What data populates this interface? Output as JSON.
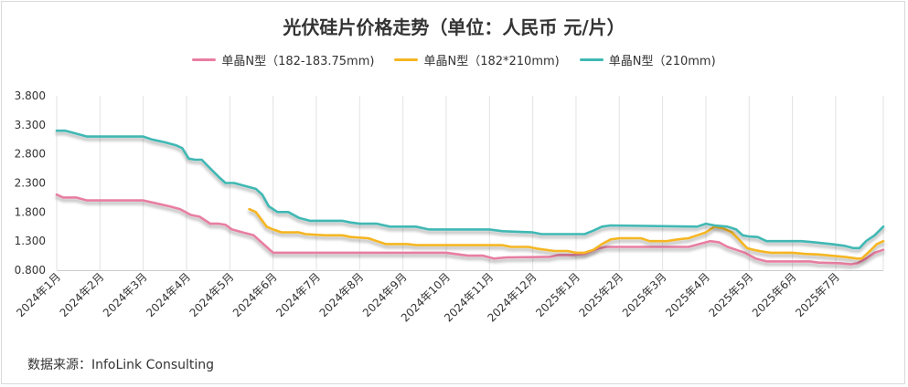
{
  "chart_data": {
    "type": "line",
    "title": "光伏硅片价格走势（单位：人民币 元/片）",
    "xlabel": "",
    "ylabel": "",
    "ylim": [
      0.8,
      3.8
    ],
    "yticks": [
      0.8,
      1.3,
      1.8,
      2.3,
      2.8,
      3.3,
      3.8
    ],
    "ytick_labels": [
      "0.800",
      "1.300",
      "1.800",
      "2.300",
      "2.800",
      "3.300",
      "3.800"
    ],
    "xlim": [
      0,
      19.1
    ],
    "categories": [
      "2024年1月",
      "2024年2月",
      "2024年3月",
      "2024年4月",
      "2024年5月",
      "2024年6月",
      "2024年7月",
      "2024年8月",
      "2024年9月",
      "2024年10月",
      "2024年11月",
      "2024年12月",
      "2025年1月",
      "2025年2月",
      "2025年3月",
      "2025年4月",
      "2025年5月",
      "2025年6月",
      "2025年7月"
    ],
    "grid": "vertical",
    "legend_position": "top-center",
    "series": [
      {
        "name": "单晶N型（182-183.75mm)",
        "color": "#e87ea1",
        "points": [
          [
            0,
            2.1
          ],
          [
            0.15,
            2.05
          ],
          [
            0.45,
            2.05
          ],
          [
            0.7,
            2.0
          ],
          [
            2.0,
            2.0
          ],
          [
            2.3,
            1.95
          ],
          [
            2.6,
            1.9
          ],
          [
            2.85,
            1.85
          ],
          [
            3.1,
            1.75
          ],
          [
            3.3,
            1.72
          ],
          [
            3.55,
            1.6
          ],
          [
            3.75,
            1.6
          ],
          [
            3.9,
            1.58
          ],
          [
            4.05,
            1.5
          ],
          [
            4.3,
            1.45
          ],
          [
            4.55,
            1.4
          ],
          [
            4.7,
            1.3
          ],
          [
            4.85,
            1.2
          ],
          [
            5.0,
            1.1
          ],
          [
            5.5,
            1.1
          ],
          [
            9.0,
            1.1
          ],
          [
            9.5,
            1.05
          ],
          [
            9.85,
            1.05
          ],
          [
            10.1,
            1.0
          ],
          [
            10.4,
            1.02
          ],
          [
            11.4,
            1.03
          ],
          [
            11.6,
            1.06
          ],
          [
            11.9,
            1.06
          ],
          [
            12.2,
            1.08
          ],
          [
            12.5,
            1.17
          ],
          [
            12.7,
            1.2
          ],
          [
            14.6,
            1.2
          ],
          [
            14.85,
            1.25
          ],
          [
            15.1,
            1.3
          ],
          [
            15.3,
            1.28
          ],
          [
            15.5,
            1.2
          ],
          [
            15.7,
            1.15
          ],
          [
            15.9,
            1.1
          ],
          [
            16.15,
            1.0
          ],
          [
            16.4,
            0.95
          ],
          [
            17.4,
            0.95
          ],
          [
            17.6,
            0.93
          ],
          [
            18.1,
            0.92
          ],
          [
            18.35,
            0.9
          ],
          [
            18.5,
            0.92
          ],
          [
            18.7,
            1.0
          ],
          [
            18.9,
            1.1
          ],
          [
            19.1,
            1.15
          ]
        ]
      },
      {
        "name": "单晶N型（182*210mm)",
        "color": "#f5b623",
        "points": [
          [
            4.45,
            1.85
          ],
          [
            4.6,
            1.8
          ],
          [
            4.7,
            1.7
          ],
          [
            4.85,
            1.55
          ],
          [
            5.0,
            1.5
          ],
          [
            5.2,
            1.45
          ],
          [
            5.6,
            1.45
          ],
          [
            5.75,
            1.42
          ],
          [
            6.2,
            1.4
          ],
          [
            6.6,
            1.4
          ],
          [
            6.8,
            1.37
          ],
          [
            7.2,
            1.35
          ],
          [
            7.4,
            1.3
          ],
          [
            7.6,
            1.25
          ],
          [
            8.1,
            1.25
          ],
          [
            8.3,
            1.23
          ],
          [
            10.3,
            1.23
          ],
          [
            10.5,
            1.2
          ],
          [
            10.9,
            1.2
          ],
          [
            11.1,
            1.17
          ],
          [
            11.5,
            1.13
          ],
          [
            11.8,
            1.13
          ],
          [
            12.0,
            1.1
          ],
          [
            12.2,
            1.1
          ],
          [
            12.4,
            1.15
          ],
          [
            12.6,
            1.25
          ],
          [
            12.8,
            1.33
          ],
          [
            13.0,
            1.35
          ],
          [
            13.5,
            1.35
          ],
          [
            13.7,
            1.3
          ],
          [
            14.1,
            1.3
          ],
          [
            14.35,
            1.33
          ],
          [
            14.6,
            1.35
          ],
          [
            14.8,
            1.4
          ],
          [
            15.0,
            1.45
          ],
          [
            15.2,
            1.55
          ],
          [
            15.4,
            1.52
          ],
          [
            15.6,
            1.45
          ],
          [
            15.8,
            1.3
          ],
          [
            15.95,
            1.18
          ],
          [
            16.1,
            1.15
          ],
          [
            16.3,
            1.12
          ],
          [
            16.5,
            1.1
          ],
          [
            17.0,
            1.1
          ],
          [
            17.3,
            1.08
          ],
          [
            17.6,
            1.07
          ],
          [
            18.2,
            1.03
          ],
          [
            18.5,
            1.0
          ],
          [
            18.6,
            1.0
          ],
          [
            18.75,
            1.1
          ],
          [
            18.95,
            1.25
          ],
          [
            19.1,
            1.3
          ]
        ]
      },
      {
        "name": "单晶N型（210mm)",
        "color": "#3fb8b4",
        "points": [
          [
            0,
            3.2
          ],
          [
            0.2,
            3.2
          ],
          [
            0.45,
            3.15
          ],
          [
            0.7,
            3.1
          ],
          [
            2.0,
            3.1
          ],
          [
            2.2,
            3.05
          ],
          [
            2.5,
            3.0
          ],
          [
            2.75,
            2.95
          ],
          [
            2.9,
            2.9
          ],
          [
            3.05,
            2.72
          ],
          [
            3.2,
            2.7
          ],
          [
            3.35,
            2.7
          ],
          [
            3.55,
            2.55
          ],
          [
            3.75,
            2.4
          ],
          [
            3.9,
            2.3
          ],
          [
            4.1,
            2.3
          ],
          [
            4.35,
            2.25
          ],
          [
            4.6,
            2.2
          ],
          [
            4.75,
            2.1
          ],
          [
            4.9,
            1.9
          ],
          [
            5.1,
            1.8
          ],
          [
            5.35,
            1.8
          ],
          [
            5.6,
            1.7
          ],
          [
            5.85,
            1.65
          ],
          [
            6.6,
            1.65
          ],
          [
            6.8,
            1.62
          ],
          [
            7.0,
            1.6
          ],
          [
            7.4,
            1.6
          ],
          [
            7.7,
            1.55
          ],
          [
            8.3,
            1.55
          ],
          [
            8.6,
            1.5
          ],
          [
            10.0,
            1.5
          ],
          [
            10.3,
            1.47
          ],
          [
            11.0,
            1.45
          ],
          [
            11.2,
            1.42
          ],
          [
            12.2,
            1.42
          ],
          [
            12.4,
            1.48
          ],
          [
            12.6,
            1.55
          ],
          [
            12.8,
            1.57
          ],
          [
            14.8,
            1.55
          ],
          [
            15.0,
            1.6
          ],
          [
            15.2,
            1.57
          ],
          [
            15.5,
            1.55
          ],
          [
            15.7,
            1.5
          ],
          [
            15.85,
            1.4
          ],
          [
            16.0,
            1.38
          ],
          [
            16.2,
            1.37
          ],
          [
            16.4,
            1.3
          ],
          [
            17.2,
            1.3
          ],
          [
            17.5,
            1.28
          ],
          [
            17.9,
            1.25
          ],
          [
            18.2,
            1.22
          ],
          [
            18.4,
            1.18
          ],
          [
            18.55,
            1.18
          ],
          [
            18.7,
            1.3
          ],
          [
            18.9,
            1.4
          ],
          [
            19.1,
            1.55
          ]
        ]
      }
    ]
  },
  "source": {
    "label": "数据来源：InfoLink Consulting"
  }
}
